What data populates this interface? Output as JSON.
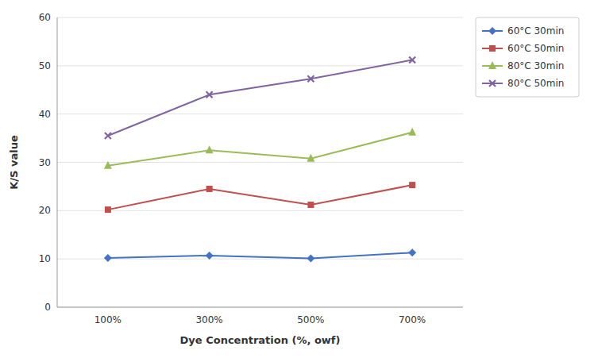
{
  "chart_data": {
    "type": "line",
    "categories": [
      "100%",
      "300%",
      "500%",
      "700%"
    ],
    "series": [
      {
        "name": "60°C 30min",
        "color": "#4472C4",
        "marker": "diamond",
        "values": [
          10.2,
          10.7,
          10.1,
          11.3
        ]
      },
      {
        "name": "60°C 50min",
        "color": "#C0504D",
        "marker": "square",
        "values": [
          20.2,
          24.5,
          21.2,
          25.3
        ]
      },
      {
        "name": "80°C 30min",
        "color": "#9BBB59",
        "marker": "triangle",
        "values": [
          29.3,
          32.5,
          30.8,
          36.2
        ]
      },
      {
        "name": "80°C 50min",
        "color": "#8064A2",
        "marker": "x",
        "values": [
          35.5,
          44.0,
          47.3,
          51.2
        ]
      }
    ],
    "x_label": "Dye Concentration (%, owf)",
    "y_label": "K/S value",
    "ylim": [
      0,
      60
    ],
    "yticks": [
      0,
      10,
      20,
      30,
      40,
      50,
      60
    ],
    "grid": true,
    "legend": "right"
  }
}
